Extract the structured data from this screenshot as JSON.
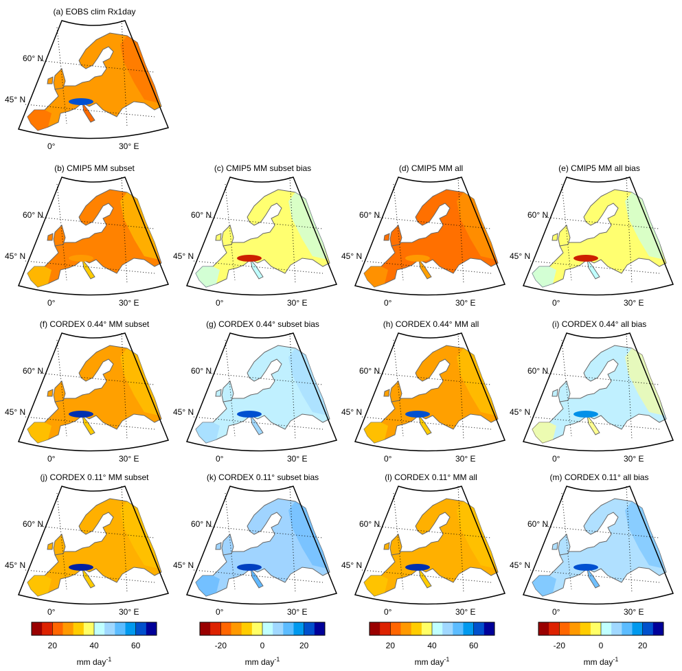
{
  "labels": {
    "lat60": "60° N",
    "lat45": "45° N",
    "lon0": "0°",
    "lon30": "30° E"
  },
  "panel_rows": [
    [
      {
        "title": "(a) EOBS clim Rx1day",
        "kind": "abs",
        "base": "#ff9a00",
        "accent": "#ff6a00",
        "alps": "#0050d0"
      }
    ],
    [
      {
        "title": "(b) CMIP5 MM subset",
        "kind": "abs",
        "base": "#ff8200",
        "accent": "#ffcc00",
        "alps": "#ff9a00"
      },
      {
        "title": "(c) CMIP5 MM subset bias",
        "kind": "bias",
        "base": "#ffff70",
        "accent": "#c0ffff",
        "alps": "#cc2000"
      },
      {
        "title": "(d) CMIP5 MM all",
        "kind": "abs",
        "base": "#ff7000",
        "accent": "#ffa000",
        "alps": "#ff9a00"
      },
      {
        "title": "(e) CMIP5 MM all bias",
        "kind": "bias",
        "base": "#ffff70",
        "accent": "#c0ffff",
        "alps": "#cc2000"
      }
    ],
    [
      {
        "title": "(f) CORDEX 0.44° MM subset",
        "kind": "abs",
        "base": "#ffa000",
        "accent": "#ffcc00",
        "alps": "#0030b0"
      },
      {
        "title": "(g) CORDEX 0.44° subset bias",
        "kind": "bias",
        "base": "#c0f0ff",
        "accent": "#a0d8ff",
        "alps": "#0050d0"
      },
      {
        "title": "(h) CORDEX 0.44° MM all",
        "kind": "abs",
        "base": "#ffa000",
        "accent": "#ffcc00",
        "alps": "#0050d0"
      },
      {
        "title": "(i) CORDEX 0.44° all bias",
        "kind": "bias",
        "base": "#c0f0ff",
        "accent": "#ffff90",
        "alps": "#0090e8"
      }
    ],
    [
      {
        "title": "(j) CORDEX 0.11° MM subset",
        "kind": "abs",
        "base": "#ffb000",
        "accent": "#ffcc00",
        "alps": "#0020a0"
      },
      {
        "title": "(k) CORDEX 0.11° subset bias",
        "kind": "bias",
        "base": "#a0d4ff",
        "accent": "#60b8ff",
        "alps": "#0040c0"
      },
      {
        "title": "(l) CORDEX 0.11° MM all",
        "kind": "abs",
        "base": "#ffb000",
        "accent": "#ffcc00",
        "alps": "#0030b0"
      },
      {
        "title": "(m) CORDEX 0.11° all bias",
        "kind": "bias",
        "base": "#b0e0ff",
        "accent": "#70c0ff",
        "alps": "#0050d0"
      }
    ]
  ],
  "colorbars": [
    {
      "kind": "abs",
      "min": 10,
      "max": 70,
      "ticks": [
        "20",
        "40",
        "60"
      ],
      "tick_values": [
        20,
        40,
        60
      ],
      "unit": "mm day",
      "unit_exp": "-1"
    },
    {
      "kind": "bias",
      "min": -30,
      "max": 30,
      "ticks": [
        "-20",
        "0",
        "20"
      ],
      "tick_values": [
        -20,
        0,
        20
      ],
      "unit": "mm day",
      "unit_exp": "-1"
    },
    {
      "kind": "abs",
      "min": 10,
      "max": 70,
      "ticks": [
        "20",
        "40",
        "60"
      ],
      "tick_values": [
        20,
        40,
        60
      ],
      "unit": "mm day",
      "unit_exp": "-1"
    },
    {
      "kind": "bias",
      "min": -30,
      "max": 30,
      "ticks": [
        "-20",
        "0",
        "20"
      ],
      "tick_values": [
        -20,
        0,
        20
      ],
      "unit": "mm day",
      "unit_exp": "-1"
    }
  ],
  "colormap": [
    "#990000",
    "#dd2200",
    "#ff6600",
    "#ff9900",
    "#ffcc00",
    "#ffff66",
    "#c0ffff",
    "#a0d8ff",
    "#5cbcff",
    "#0099ee",
    "#0050cc",
    "#000099"
  ]
}
